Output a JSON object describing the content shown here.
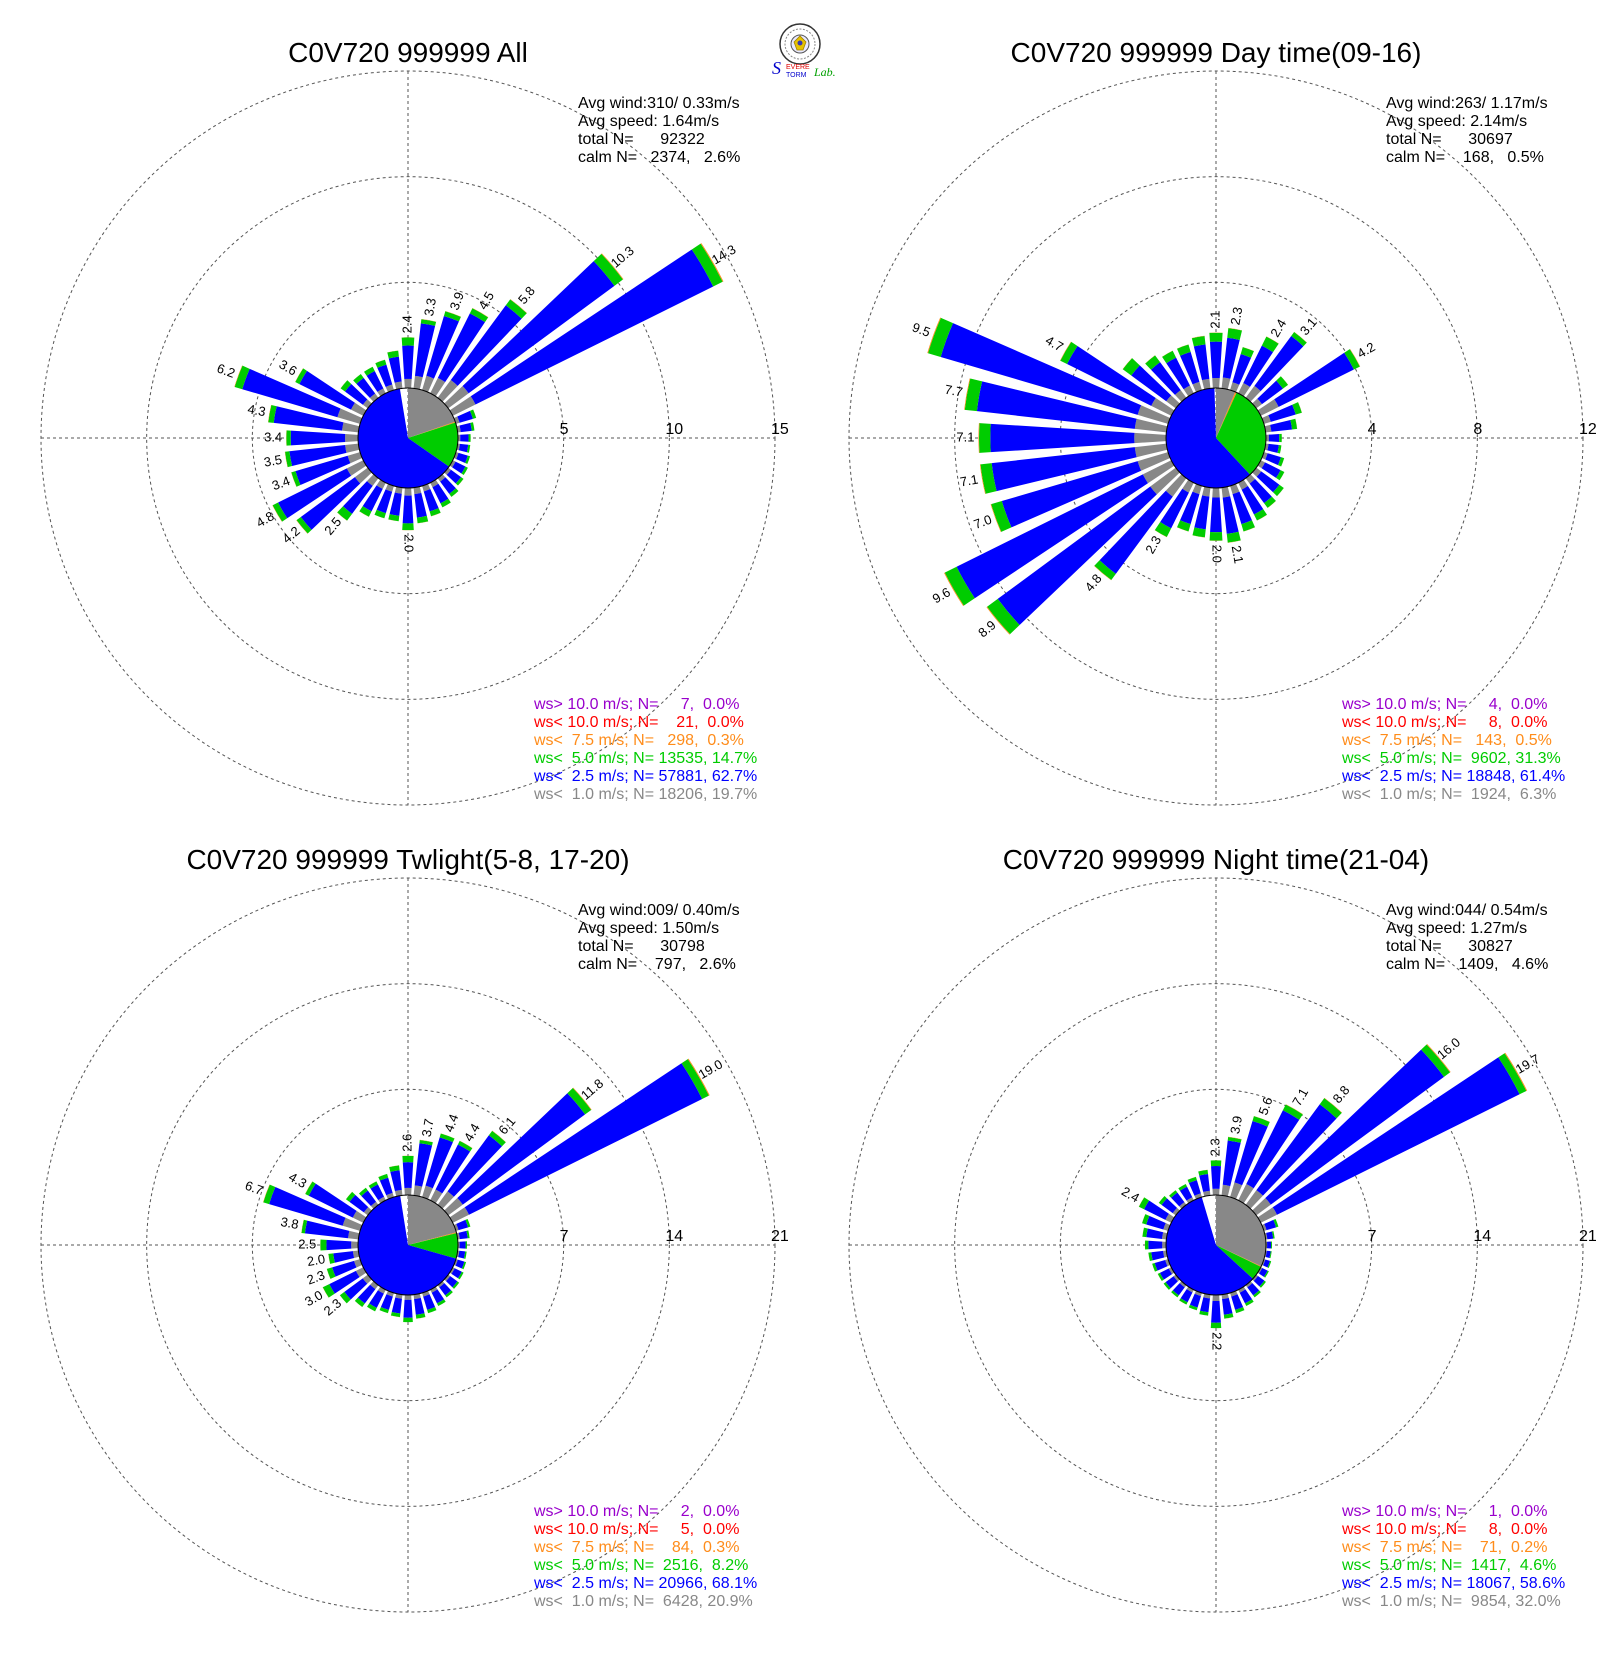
{
  "colors": {
    "gt10": "#9900cc",
    "lt10": "#ff0000",
    "lt75": "#ff8c1a",
    "lt5": "#00cc00",
    "lt25": "#0000ff",
    "lt1": "#888888",
    "grid": "#555555"
  },
  "logo": {
    "icon": "severe-storm-lab-logo",
    "text_severe": "EVERE",
    "text_storm": "TORM",
    "text_lab": "Lab."
  },
  "chart_data": [
    {
      "type": "wind-rose",
      "title": "C0V720 999999 All",
      "rings": [
        5,
        10,
        15
      ],
      "ring_labels": [
        "5",
        "10",
        "15"
      ],
      "stats": [
        "Avg wind:310/ 0.33m/s",
        "Avg speed: 1.64m/s",
        "total N=      92322",
        "calm N=   2374,   2.6%"
      ],
      "legend": [
        {
          "cls": "gt10",
          "text": "ws> 10.0 m/s; N=     7,  0.0%"
        },
        {
          "cls": "lt10",
          "text": "ws< 10.0 m/s; N=    21,  0.0%"
        },
        {
          "cls": "lt75",
          "text": "ws<  7.5 m/s; N=   298,  0.3%"
        },
        {
          "cls": "lt5",
          "text": "ws<  5.0 m/s; N= 13535, 14.7%"
        },
        {
          "cls": "lt25",
          "text": "ws<  2.5 m/s; N= 57881, 62.7%"
        },
        {
          "cls": "lt1",
          "text": "ws<  1.0 m/s; N= 18206, 19.7%"
        }
      ],
      "sectors": [
        {
          "dir": 0,
          "total": 2.4,
          "label": "2.4"
        },
        {
          "dir": 10,
          "total": 3.3,
          "label": "3.3"
        },
        {
          "dir": 20,
          "total": 3.9,
          "label": "3.9"
        },
        {
          "dir": 30,
          "total": 4.5,
          "label": "4.5"
        },
        {
          "dir": 40,
          "total": 5.8,
          "label": "5.8"
        },
        {
          "dir": 50,
          "total": 10.3,
          "label": "10.3"
        },
        {
          "dir": 60,
          "total": 14.3,
          "label": "14.3"
        },
        {
          "dir": 70,
          "total": 1.0
        },
        {
          "dir": 80,
          "total": 0.8
        },
        {
          "dir": 90,
          "total": 0.6
        },
        {
          "dir": 100,
          "total": 0.6
        },
        {
          "dir": 110,
          "total": 0.7
        },
        {
          "dir": 120,
          "total": 0.8
        },
        {
          "dir": 130,
          "total": 0.9
        },
        {
          "dir": 140,
          "total": 1.1
        },
        {
          "dir": 150,
          "total": 1.3
        },
        {
          "dir": 160,
          "total": 1.5
        },
        {
          "dir": 170,
          "total": 1.7
        },
        {
          "dir": 180,
          "total": 2.0,
          "label": "2.0"
        },
        {
          "dir": 190,
          "total": 1.6
        },
        {
          "dir": 200,
          "total": 1.6
        },
        {
          "dir": 210,
          "total": 1.8
        },
        {
          "dir": 220,
          "total": 2.5,
          "label": "2.5"
        },
        {
          "dir": 230,
          "total": 4.2,
          "label": "4.2"
        },
        {
          "dir": 240,
          "total": 4.8,
          "label": "4.8"
        },
        {
          "dir": 250,
          "total": 3.4,
          "label": "3.4"
        },
        {
          "dir": 260,
          "total": 3.5,
          "label": "3.5"
        },
        {
          "dir": 270,
          "total": 3.4,
          "label": "3.4"
        },
        {
          "dir": 280,
          "total": 4.3,
          "label": "4.3"
        },
        {
          "dir": 290,
          "total": 6.2,
          "label": "6.2"
        },
        {
          "dir": 300,
          "total": 3.6,
          "label": "3.6"
        },
        {
          "dir": 310,
          "total": 1.6
        },
        {
          "dir": 320,
          "total": 1.4
        },
        {
          "dir": 330,
          "total": 1.4
        },
        {
          "dir": 340,
          "total": 1.5
        },
        {
          "dir": 350,
          "total": 1.8
        }
      ],
      "pie": [
        {
          "cls": "lt1",
          "pct": 19.7
        },
        {
          "cls": "lt75",
          "pct": 0.3
        },
        {
          "cls": "lt10",
          "pct": 0.0
        },
        {
          "cls": "lt5",
          "pct": 14.7
        },
        {
          "cls": "lt25",
          "pct": 62.7
        }
      ]
    },
    {
      "type": "wind-rose",
      "title": "C0V720 999999 Day time(09-16)",
      "rings": [
        4,
        8,
        12
      ],
      "ring_labels": [
        "4",
        "8",
        "12"
      ],
      "stats": [
        "Avg wind:263/ 1.17m/s",
        "Avg speed: 2.14m/s",
        "total N=      30697",
        "calm N=    168,   0.5%"
      ],
      "legend": [
        {
          "cls": "gt10",
          "text": "ws> 10.0 m/s; N=     4,  0.0%"
        },
        {
          "cls": "lt10",
          "text": "ws< 10.0 m/s; N=     8,  0.0%"
        },
        {
          "cls": "lt75",
          "text": "ws<  7.5 m/s; N=   143,  0.5%"
        },
        {
          "cls": "lt5",
          "text": "ws<  5.0 m/s; N=  9602, 31.3%"
        },
        {
          "cls": "lt25",
          "text": "ws<  2.5 m/s; N= 18848, 61.4%"
        },
        {
          "cls": "lt1",
          "text": "ws<  1.0 m/s; N=  1924,  6.3%"
        }
      ],
      "sectors": [
        {
          "dir": 0,
          "total": 2.1,
          "label": "2.1"
        },
        {
          "dir": 10,
          "total": 2.3,
          "label": "2.3"
        },
        {
          "dir": 20,
          "total": 1.7
        },
        {
          "dir": 30,
          "total": 2.4,
          "label": "2.4"
        },
        {
          "dir": 40,
          "total": 3.1,
          "label": "3.1"
        },
        {
          "dir": 50,
          "total": 1.5
        },
        {
          "dir": 60,
          "total": 4.2,
          "label": "4.2"
        },
        {
          "dir": 70,
          "total": 1.5
        },
        {
          "dir": 80,
          "total": 1.2
        },
        {
          "dir": 90,
          "total": 0.6
        },
        {
          "dir": 100,
          "total": 0.6
        },
        {
          "dir": 110,
          "total": 0.8
        },
        {
          "dir": 120,
          "total": 1.0
        },
        {
          "dir": 130,
          "total": 1.3
        },
        {
          "dir": 140,
          "total": 1.4
        },
        {
          "dir": 150,
          "total": 1.6
        },
        {
          "dir": 160,
          "total": 1.8
        },
        {
          "dir": 170,
          "total": 2.1,
          "label": "2.1"
        },
        {
          "dir": 180,
          "total": 2.0,
          "label": "2.0"
        },
        {
          "dir": 190,
          "total": 1.9
        },
        {
          "dir": 200,
          "total": 1.8
        },
        {
          "dir": 210,
          "total": 2.3,
          "label": "2.3"
        },
        {
          "dir": 220,
          "total": 4.8,
          "label": "4.8"
        },
        {
          "dir": 230,
          "total": 8.9,
          "label": "8.9"
        },
        {
          "dir": 240,
          "total": 9.6,
          "label": "9.6"
        },
        {
          "dir": 250,
          "total": 7.0,
          "label": "7.0"
        },
        {
          "dir": 260,
          "total": 7.1,
          "label": "7.1"
        },
        {
          "dir": 270,
          "total": 7.1,
          "label": "7.1"
        },
        {
          "dir": 280,
          "total": 7.7,
          "label": "7.7"
        },
        {
          "dir": 290,
          "total": 9.5,
          "label": "9.5"
        },
        {
          "dir": 300,
          "total": 4.7,
          "label": "4.7"
        },
        {
          "dir": 310,
          "total": 2.5
        },
        {
          "dir": 320,
          "total": 2.0
        },
        {
          "dir": 330,
          "total": 1.8
        },
        {
          "dir": 340,
          "total": 1.8
        },
        {
          "dir": 350,
          "total": 2.0
        }
      ],
      "pie": [
        {
          "cls": "lt1",
          "pct": 6.3
        },
        {
          "cls": "lt75",
          "pct": 0.5
        },
        {
          "cls": "lt10",
          "pct": 0.0
        },
        {
          "cls": "lt5",
          "pct": 31.3
        },
        {
          "cls": "lt25",
          "pct": 61.4
        }
      ]
    },
    {
      "type": "wind-rose",
      "title": "C0V720 999999 Twlight(5-8, 17-20)",
      "rings": [
        7,
        14,
        21
      ],
      "ring_labels": [
        "7",
        "14",
        "21"
      ],
      "stats": [
        "Avg wind:009/ 0.40m/s",
        "Avg speed: 1.50m/s",
        "total N=      30798",
        "calm N=    797,   2.6%"
      ],
      "legend": [
        {
          "cls": "gt10",
          "text": "ws> 10.0 m/s; N=     2,  0.0%"
        },
        {
          "cls": "lt10",
          "text": "ws< 10.0 m/s; N=     5,  0.0%"
        },
        {
          "cls": "lt75",
          "text": "ws<  7.5 m/s; N=    84,  0.3%"
        },
        {
          "cls": "lt5",
          "text": "ws<  5.0 m/s; N=  2516,  8.2%"
        },
        {
          "cls": "lt25",
          "text": "ws<  2.5 m/s; N= 20966, 68.1%"
        },
        {
          "cls": "lt1",
          "text": "ws<  1.0 m/s; N=  6428, 20.9%"
        }
      ],
      "sectors": [
        {
          "dir": 0,
          "total": 2.6,
          "label": "2.6"
        },
        {
          "dir": 10,
          "total": 3.7,
          "label": "3.7"
        },
        {
          "dir": 20,
          "total": 4.4,
          "label": "4.4"
        },
        {
          "dir": 30,
          "total": 4.4,
          "label": "4.4"
        },
        {
          "dir": 40,
          "total": 6.1,
          "label": "6.1"
        },
        {
          "dir": 50,
          "total": 11.8,
          "label": "11.8"
        },
        {
          "dir": 60,
          "total": 19.0,
          "label": "19.0"
        },
        {
          "dir": 70,
          "total": 1.0
        },
        {
          "dir": 80,
          "total": 0.8
        },
        {
          "dir": 90,
          "total": 0.6
        },
        {
          "dir": 100,
          "total": 0.6
        },
        {
          "dir": 110,
          "total": 0.7
        },
        {
          "dir": 120,
          "total": 0.8
        },
        {
          "dir": 130,
          "total": 0.9
        },
        {
          "dir": 140,
          "total": 1.0
        },
        {
          "dir": 150,
          "total": 1.2
        },
        {
          "dir": 160,
          "total": 1.4
        },
        {
          "dir": 170,
          "total": 1.6
        },
        {
          "dir": 180,
          "total": 1.8
        },
        {
          "dir": 190,
          "total": 1.5
        },
        {
          "dir": 200,
          "total": 1.4
        },
        {
          "dir": 210,
          "total": 1.6
        },
        {
          "dir": 220,
          "total": 1.8
        },
        {
          "dir": 230,
          "total": 2.3,
          "label": "2.3"
        },
        {
          "dir": 240,
          "total": 3.0,
          "label": "3.0"
        },
        {
          "dir": 250,
          "total": 2.3,
          "label": "2.3"
        },
        {
          "dir": 260,
          "total": 2.0,
          "label": "2.0"
        },
        {
          "dir": 270,
          "total": 2.5,
          "label": "2.5"
        },
        {
          "dir": 280,
          "total": 3.8,
          "label": "3.8"
        },
        {
          "dir": 290,
          "total": 6.7,
          "label": "6.7"
        },
        {
          "dir": 300,
          "total": 4.3,
          "label": "4.3"
        },
        {
          "dir": 310,
          "total": 1.8
        },
        {
          "dir": 320,
          "total": 1.4
        },
        {
          "dir": 330,
          "total": 1.4
        },
        {
          "dir": 340,
          "total": 1.6
        },
        {
          "dir": 350,
          "total": 2.0
        }
      ],
      "pie": [
        {
          "cls": "lt1",
          "pct": 20.9
        },
        {
          "cls": "lt75",
          "pct": 0.3
        },
        {
          "cls": "lt10",
          "pct": 0.0
        },
        {
          "cls": "lt5",
          "pct": 8.2
        },
        {
          "cls": "lt25",
          "pct": 68.1
        }
      ]
    },
    {
      "type": "wind-rose",
      "title": "C0V720 999999 Night time(21-04)",
      "rings": [
        7,
        14,
        21
      ],
      "ring_labels": [
        "7",
        "14",
        "21"
      ],
      "stats": [
        "Avg wind:044/ 0.54m/s",
        "Avg speed: 1.27m/s",
        "total N=      30827",
        "calm N=   1409,   4.6%"
      ],
      "legend": [
        {
          "cls": "gt10",
          "text": "ws> 10.0 m/s; N=     1,  0.0%"
        },
        {
          "cls": "lt10",
          "text": "ws< 10.0 m/s; N=     8,  0.0%"
        },
        {
          "cls": "lt75",
          "text": "ws<  7.5 m/s; N=    71,  0.2%"
        },
        {
          "cls": "lt5",
          "text": "ws<  5.0 m/s; N=  1417,  4.6%"
        },
        {
          "cls": "lt25",
          "text": "ws<  2.5 m/s; N= 18067, 58.6%"
        },
        {
          "cls": "lt1",
          "text": "ws<  1.0 m/s; N=  9854, 32.0%"
        }
      ],
      "sectors": [
        {
          "dir": 0,
          "total": 2.3,
          "label": "2.3"
        },
        {
          "dir": 10,
          "total": 3.9,
          "label": "3.9"
        },
        {
          "dir": 20,
          "total": 5.6,
          "label": "5.6"
        },
        {
          "dir": 30,
          "total": 7.1,
          "label": "7.1"
        },
        {
          "dir": 40,
          "total": 8.8,
          "label": "8.8"
        },
        {
          "dir": 50,
          "total": 16.0,
          "label": "16.0"
        },
        {
          "dir": 60,
          "total": 19.7,
          "label": "19.7"
        },
        {
          "dir": 70,
          "total": 1.0
        },
        {
          "dir": 80,
          "total": 0.6
        },
        {
          "dir": 90,
          "total": 0.4
        },
        {
          "dir": 100,
          "total": 0.4
        },
        {
          "dir": 110,
          "total": 0.5
        },
        {
          "dir": 120,
          "total": 0.6
        },
        {
          "dir": 130,
          "total": 0.8
        },
        {
          "dir": 140,
          "total": 1.0
        },
        {
          "dir": 150,
          "total": 1.2
        },
        {
          "dir": 160,
          "total": 1.4
        },
        {
          "dir": 170,
          "total": 1.6
        },
        {
          "dir": 180,
          "total": 2.2,
          "label": "2.2"
        },
        {
          "dir": 190,
          "total": 1.4
        },
        {
          "dir": 200,
          "total": 1.2
        },
        {
          "dir": 210,
          "total": 1.1
        },
        {
          "dir": 220,
          "total": 1.0
        },
        {
          "dir": 230,
          "total": 1.0
        },
        {
          "dir": 240,
          "total": 1.0
        },
        {
          "dir": 250,
          "total": 1.1
        },
        {
          "dir": 260,
          "total": 1.2
        },
        {
          "dir": 270,
          "total": 1.4
        },
        {
          "dir": 280,
          "total": 1.6
        },
        {
          "dir": 290,
          "total": 1.8
        },
        {
          "dir": 300,
          "total": 2.4,
          "label": "2.4"
        },
        {
          "dir": 310,
          "total": 1.4
        },
        {
          "dir": 320,
          "total": 1.2
        },
        {
          "dir": 330,
          "total": 1.2
        },
        {
          "dir": 340,
          "total": 1.4
        },
        {
          "dir": 350,
          "total": 1.7
        }
      ],
      "pie": [
        {
          "cls": "lt1",
          "pct": 32.0
        },
        {
          "cls": "lt75",
          "pct": 0.2
        },
        {
          "cls": "lt10",
          "pct": 0.0
        },
        {
          "cls": "lt5",
          "pct": 4.6
        },
        {
          "cls": "lt25",
          "pct": 58.6
        }
      ]
    }
  ]
}
